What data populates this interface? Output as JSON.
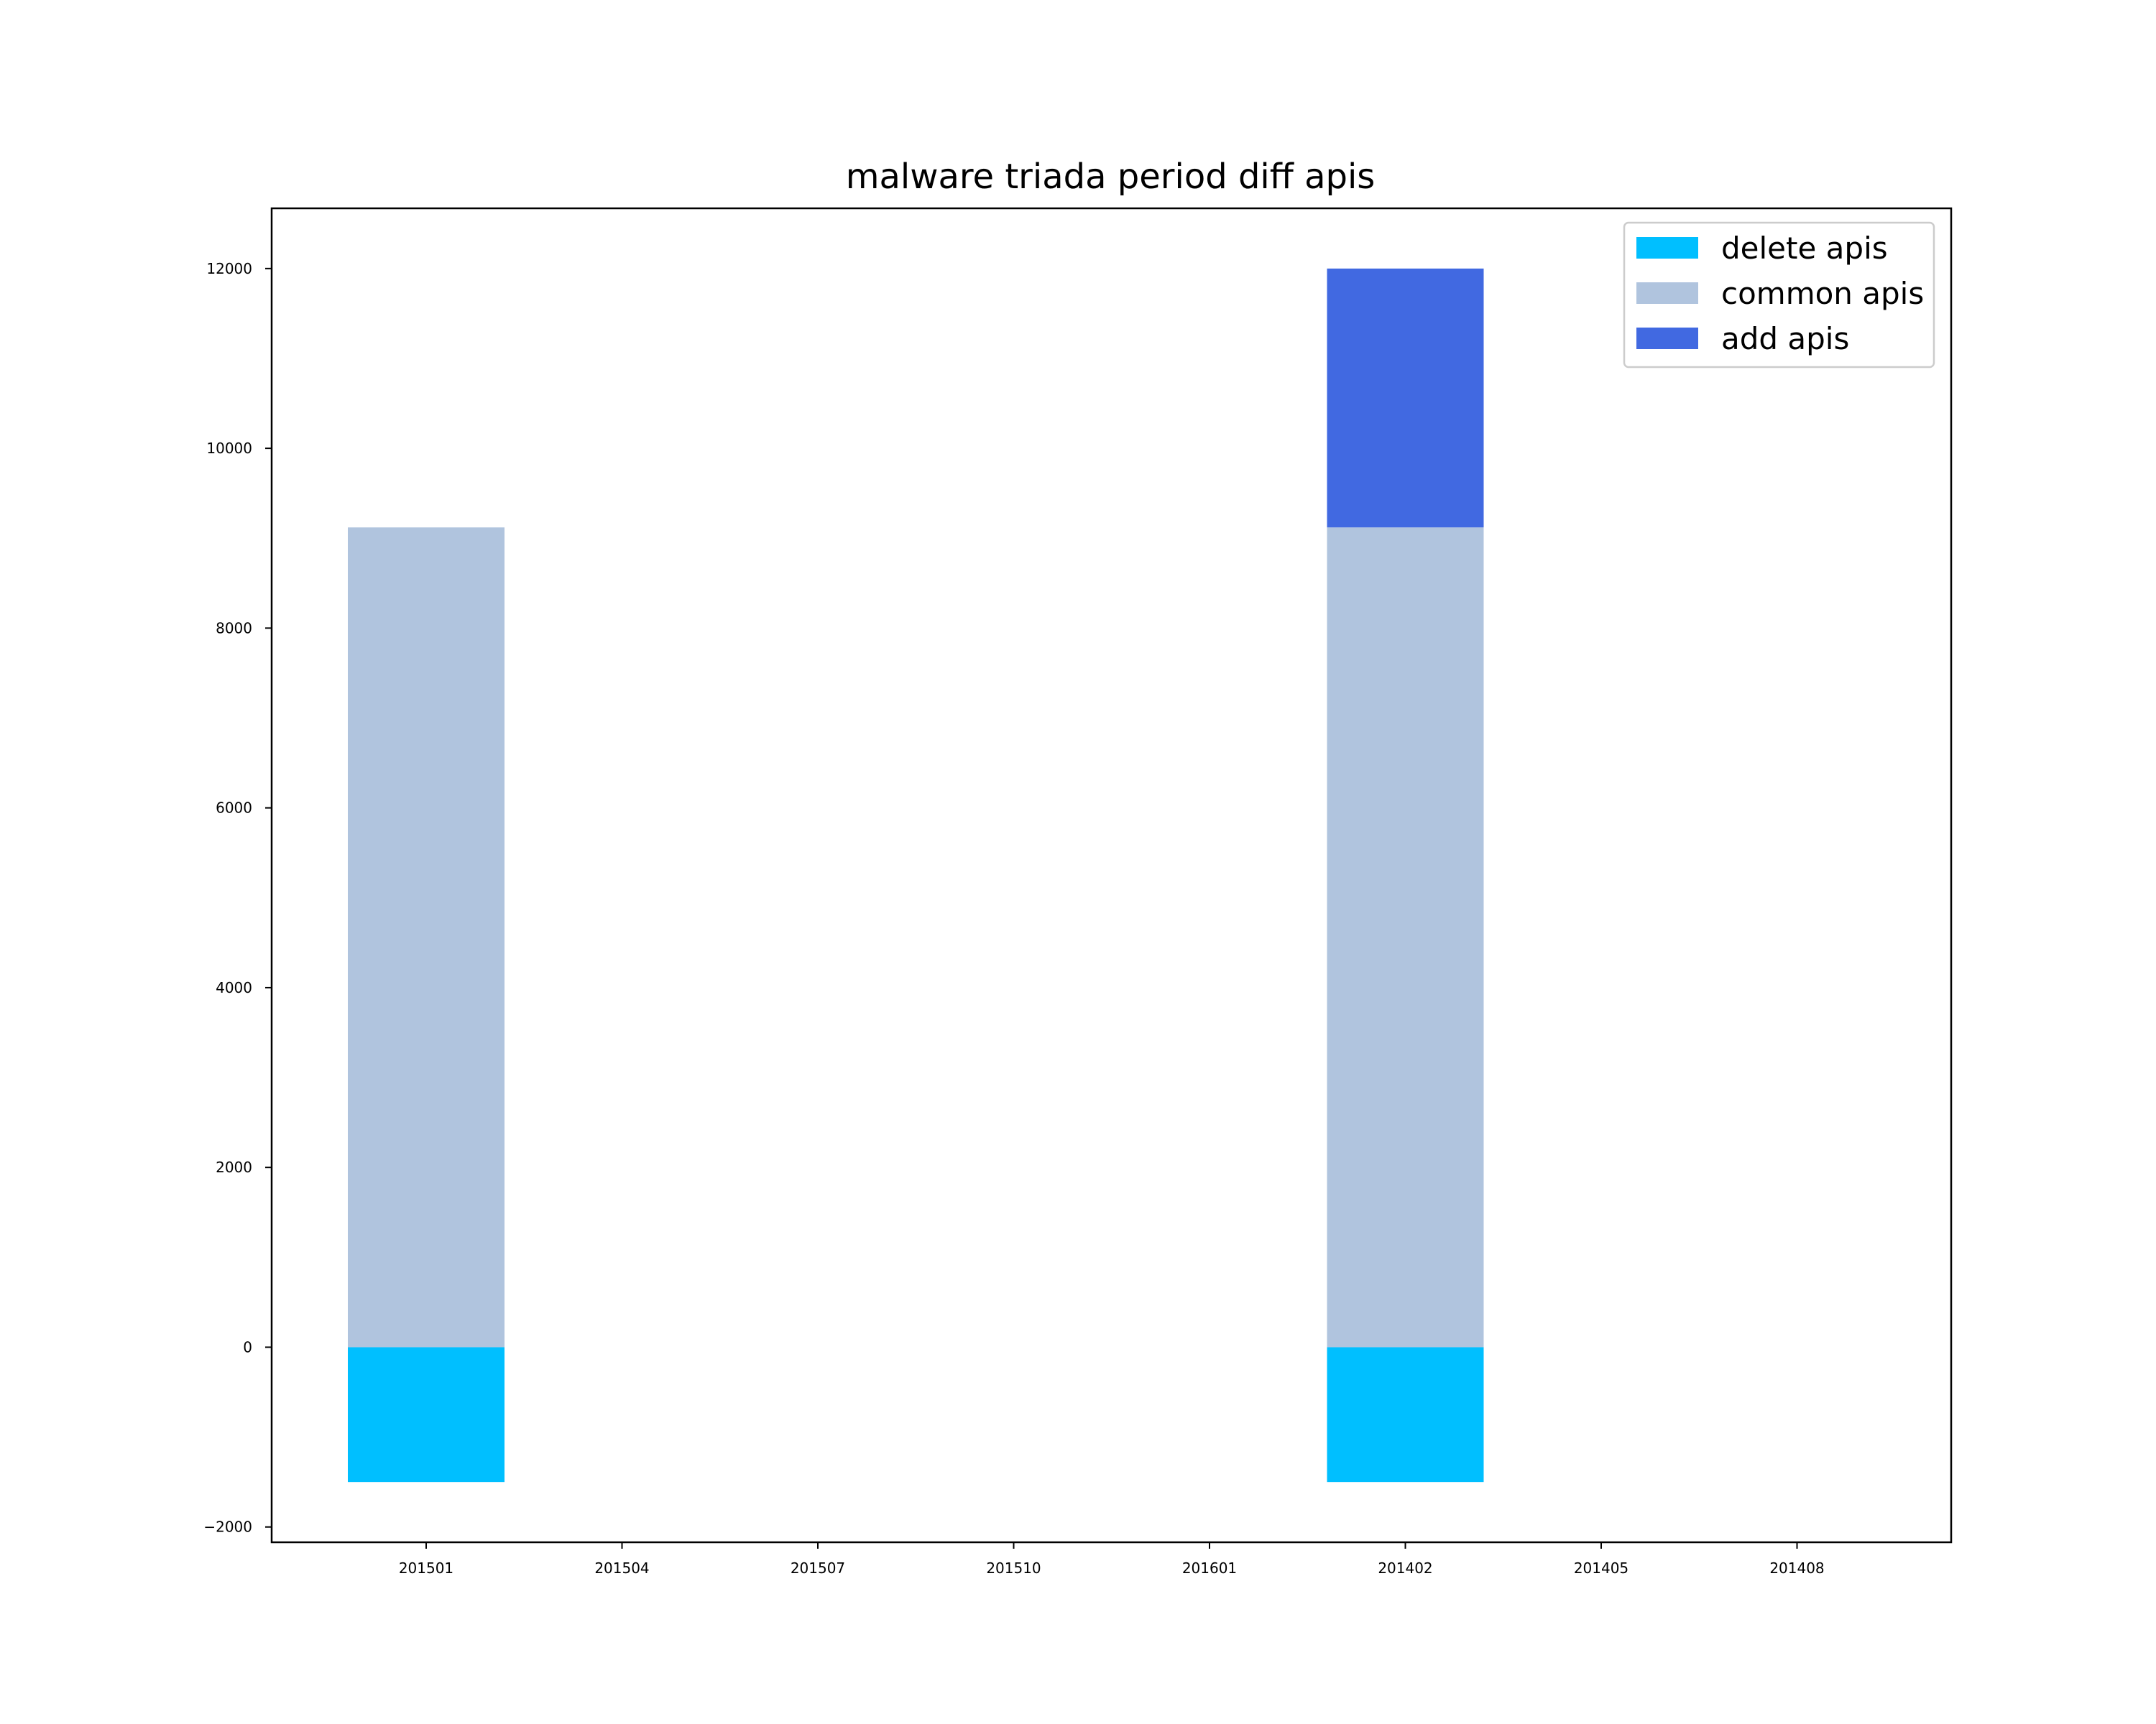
{
  "chart_data": {
    "type": "bar",
    "stacked": true,
    "title": "malware triada period diff apis",
    "xlabel": "",
    "ylabel": "",
    "categories": [
      "201501",
      "201504",
      "201507",
      "201510",
      "201601",
      "201402",
      "201405",
      "201408"
    ],
    "series": [
      {
        "name": "delete apis",
        "color": "#00BFFF",
        "values": [
          -1500,
          0,
          0,
          0,
          0,
          -1500,
          0,
          0
        ]
      },
      {
        "name": "common apis",
        "color": "#B0C4DE",
        "values": [
          9120,
          0,
          0,
          0,
          0,
          9120,
          0,
          0
        ]
      },
      {
        "name": "add apis",
        "color": "#4169E1",
        "values": [
          0,
          0,
          0,
          0,
          0,
          2880,
          0,
          0
        ]
      }
    ],
    "ylim": [
      -2170,
      12670
    ],
    "yticks": [
      -2000,
      0,
      2000,
      4000,
      6000,
      8000,
      10000,
      12000
    ],
    "ytick_labels": [
      "−2000",
      "0",
      "2000",
      "4000",
      "6000",
      "8000",
      "10000",
      "12000"
    ],
    "grid": false,
    "legend_position": "top-right"
  }
}
